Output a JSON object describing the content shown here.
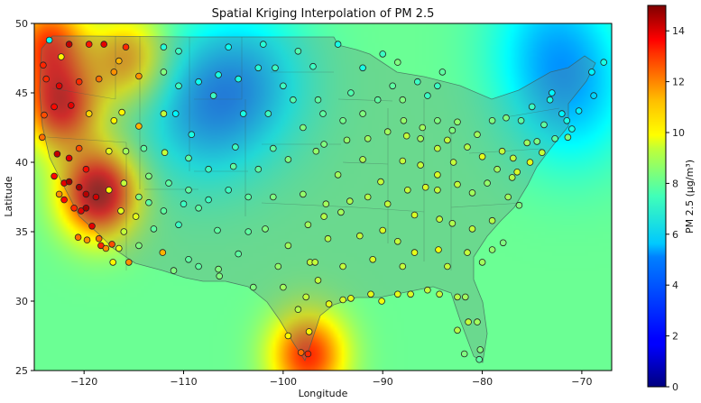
{
  "chart_data": {
    "type": "scatter",
    "title": "Spatial Kriging Interpolation of PM 2.5",
    "xlabel": "Longitude",
    "ylabel": "Latitude",
    "xlim": [
      -125,
      -67
    ],
    "ylim": [
      25,
      50
    ],
    "xticks": [
      -120,
      -110,
      -100,
      -90,
      -80,
      -70
    ],
    "xtick_labels": [
      "−120",
      "−110",
      "−100",
      "−90",
      "−80",
      "−70"
    ],
    "yticks": [
      25,
      30,
      35,
      40,
      45,
      50
    ],
    "ytick_labels": [
      "25",
      "30",
      "35",
      "40",
      "45",
      "50"
    ],
    "colorbar": {
      "label": "PM 2.5 (μg/m³)",
      "range": [
        0,
        15
      ],
      "ticks": [
        0,
        2,
        4,
        6,
        8,
        10,
        12,
        14
      ],
      "tick_labels": [
        "0",
        "2",
        "4",
        "6",
        "8",
        "10",
        "12",
        "14"
      ],
      "colormap": "jet"
    },
    "background_field": {
      "base_value": 7.2,
      "hotspots": [
        {
          "lon": -118.5,
          "lat": 37.8,
          "value": 14.5
        },
        {
          "lon": -122.3,
          "lat": 44.0,
          "value": 13.0
        },
        {
          "lon": -123.5,
          "lat": 48.6,
          "value": 12.0
        },
        {
          "lon": -115.6,
          "lat": 47.4,
          "value": 11.0
        },
        {
          "lon": -97.5,
          "lat": 26.1,
          "value": 12.5
        }
      ],
      "coldspots": [
        {
          "lon": -108.5,
          "lat": 43.5,
          "value": 5.0
        },
        {
          "lon": -103.5,
          "lat": 45.8,
          "value": 5.0
        },
        {
          "lon": -71.0,
          "lat": 44.5,
          "value": 5.2
        },
        {
          "lon": -73.0,
          "lat": 49.0,
          "value": 5.3
        }
      ]
    },
    "points": [
      [
        -124.1,
        47.0,
        12.6
      ],
      [
        -123.5,
        48.8,
        5.8
      ],
      [
        -122.3,
        47.6,
        9.5
      ],
      [
        -121.5,
        48.5,
        14.0
      ],
      [
        -119.5,
        48.5,
        12.8
      ],
      [
        -118.0,
        48.5,
        13.5
      ],
      [
        -115.8,
        48.3,
        12.5
      ],
      [
        -116.5,
        47.3,
        10.5
      ],
      [
        -112.0,
        48.3,
        6.2
      ],
      [
        -110.5,
        48.0,
        6.5
      ],
      [
        -105.5,
        48.3,
        5.8
      ],
      [
        -102.0,
        48.5,
        6.2
      ],
      [
        -98.5,
        48.0,
        6.8
      ],
      [
        -94.5,
        48.5,
        6.0
      ],
      [
        -90.0,
        47.8,
        6.5
      ],
      [
        -88.5,
        47.2,
        7.5
      ],
      [
        -84.0,
        46.5,
        7.0
      ],
      [
        -92.0,
        46.8,
        6.0
      ],
      [
        -123.8,
        46.0,
        12.5
      ],
      [
        -122.5,
        45.5,
        13.5
      ],
      [
        -120.5,
        45.8,
        12.5
      ],
      [
        -118.5,
        46.0,
        11.5
      ],
      [
        -117.0,
        46.5,
        11.0
      ],
      [
        -116.2,
        43.6,
        9.5
      ],
      [
        -114.5,
        46.2,
        11.0
      ],
      [
        -112.0,
        46.5,
        7.5
      ],
      [
        -110.5,
        45.5,
        6.5
      ],
      [
        -108.5,
        45.8,
        5.8
      ],
      [
        -106.5,
        46.3,
        6.0
      ],
      [
        -104.5,
        46.0,
        6.0
      ],
      [
        -100.8,
        46.8,
        6.5
      ],
      [
        -97.0,
        46.9,
        6.5
      ],
      [
        -96.5,
        44.5,
        7.0
      ],
      [
        -93.2,
        45.0,
        6.8
      ],
      [
        -90.5,
        44.5,
        7.0
      ],
      [
        -87.9,
        43.0,
        7.8
      ],
      [
        -85.5,
        44.8,
        6.5
      ],
      [
        -83.0,
        42.3,
        7.5
      ],
      [
        -124.0,
        43.4,
        12.0
      ],
      [
        -123.0,
        44.0,
        13.0
      ],
      [
        -121.3,
        44.1,
        13.5
      ],
      [
        -119.5,
        43.5,
        10.0
      ],
      [
        -117.0,
        43.0,
        9.5
      ],
      [
        -114.5,
        42.6,
        10.5
      ],
      [
        -112.0,
        43.5,
        8.5
      ],
      [
        -110.8,
        43.5,
        5.5
      ],
      [
        -109.2,
        42.0,
        6.0
      ],
      [
        -107.0,
        44.8,
        6.5
      ],
      [
        -104.8,
        41.1,
        6.5
      ],
      [
        -101.0,
        41.0,
        7.0
      ],
      [
        -98.0,
        42.5,
        7.5
      ],
      [
        -95.9,
        41.3,
        7.5
      ],
      [
        -93.6,
        41.6,
        7.8
      ],
      [
        -91.5,
        41.7,
        8.0
      ],
      [
        -89.5,
        42.2,
        8.0
      ],
      [
        -87.6,
        41.9,
        8.5
      ],
      [
        -86.2,
        41.7,
        8.0
      ],
      [
        -84.5,
        43.0,
        7.5
      ],
      [
        -82.5,
        42.9,
        7.8
      ],
      [
        -124.2,
        41.8,
        11.5
      ],
      [
        -122.7,
        40.6,
        14.0
      ],
      [
        -121.5,
        40.3,
        13.5
      ],
      [
        -120.5,
        41.0,
        12.0
      ],
      [
        -119.8,
        39.5,
        13.0
      ],
      [
        -117.5,
        40.8,
        9.0
      ],
      [
        -115.8,
        40.8,
        8.0
      ],
      [
        -114.0,
        41.0,
        7.0
      ],
      [
        -111.9,
        40.7,
        8.5
      ],
      [
        -109.5,
        40.3,
        7.0
      ],
      [
        -107.5,
        39.5,
        6.5
      ],
      [
        -105.0,
        39.7,
        7.0
      ],
      [
        -102.5,
        39.5,
        7.0
      ],
      [
        -99.5,
        40.2,
        7.5
      ],
      [
        -96.7,
        40.8,
        7.8
      ],
      [
        -94.5,
        39.1,
        8.0
      ],
      [
        -92.0,
        40.2,
        8.2
      ],
      [
        -90.2,
        38.6,
        8.5
      ],
      [
        -88.0,
        40.1,
        8.5
      ],
      [
        -86.2,
        39.8,
        8.5
      ],
      [
        -84.5,
        39.1,
        8.8
      ],
      [
        -82.9,
        40.0,
        8.5
      ],
      [
        -81.5,
        41.1,
        8.3
      ],
      [
        -80.0,
        40.4,
        9.0
      ],
      [
        -78.0,
        40.8,
        8.5
      ],
      [
        -76.5,
        39.3,
        8.8
      ],
      [
        -75.2,
        40.0,
        9.0
      ],
      [
        -74.0,
        40.7,
        8.5
      ],
      [
        -72.7,
        41.7,
        7.0
      ],
      [
        -71.4,
        41.8,
        7.5
      ],
      [
        -71.0,
        42.4,
        6.0
      ],
      [
        -123.0,
        39.0,
        13.0
      ],
      [
        -122.0,
        38.5,
        13.5
      ],
      [
        -121.5,
        38.6,
        14.5
      ],
      [
        -120.5,
        38.2,
        14.5
      ],
      [
        -119.8,
        37.7,
        14.2
      ],
      [
        -118.8,
        37.5,
        13.8
      ],
      [
        -117.5,
        38.0,
        9.5
      ],
      [
        -116.0,
        38.5,
        8.5
      ],
      [
        -114.5,
        37.5,
        7.5
      ],
      [
        -113.5,
        37.1,
        7.0
      ],
      [
        -111.5,
        38.5,
        7.0
      ],
      [
        -109.5,
        38.0,
        7.0
      ],
      [
        -107.5,
        37.3,
        6.5
      ],
      [
        -105.5,
        38.0,
        6.5
      ],
      [
        -103.5,
        37.5,
        7.0
      ],
      [
        -101.0,
        37.5,
        7.5
      ],
      [
        -98.0,
        37.7,
        7.8
      ],
      [
        -95.7,
        37.0,
        8.0
      ],
      [
        -93.3,
        37.2,
        8.2
      ],
      [
        -91.5,
        37.5,
        8.3
      ],
      [
        -89.5,
        37.0,
        8.5
      ],
      [
        -87.5,
        38.0,
        8.5
      ],
      [
        -85.7,
        38.2,
        8.8
      ],
      [
        -84.5,
        38.0,
        8.5
      ],
      [
        -82.5,
        38.4,
        8.5
      ],
      [
        -81.0,
        37.8,
        8.0
      ],
      [
        -79.5,
        38.5,
        7.8
      ],
      [
        -77.4,
        37.5,
        8.0
      ],
      [
        -76.3,
        36.9,
        7.5
      ],
      [
        -122.5,
        37.7,
        11.0
      ],
      [
        -122.0,
        37.3,
        13.0
      ],
      [
        -121.0,
        36.7,
        12.5
      ],
      [
        -120.3,
        36.5,
        13.5
      ],
      [
        -119.8,
        36.7,
        14.5
      ],
      [
        -119.2,
        35.4,
        13.5
      ],
      [
        -118.5,
        34.5,
        11.5
      ],
      [
        -118.3,
        34.0,
        12.5
      ],
      [
        -117.8,
        33.8,
        11.0
      ],
      [
        -117.2,
        34.1,
        12.0
      ],
      [
        -116.5,
        33.8,
        9.0
      ],
      [
        -117.1,
        32.8,
        9.5
      ],
      [
        -115.5,
        32.8,
        11.0
      ],
      [
        -114.5,
        34.0,
        7.5
      ],
      [
        -112.1,
        33.5,
        10.5
      ],
      [
        -111.0,
        32.2,
        7.5
      ],
      [
        -109.5,
        33.0,
        7.0
      ],
      [
        -106.6,
        35.1,
        7.0
      ],
      [
        -106.5,
        32.3,
        7.5
      ],
      [
        -104.5,
        33.4,
        7.0
      ],
      [
        -101.8,
        35.2,
        7.5
      ],
      [
        -99.5,
        34.0,
        8.0
      ],
      [
        -97.5,
        35.5,
        8.0
      ],
      [
        -95.9,
        36.1,
        8.3
      ],
      [
        -94.2,
        36.4,
        8.0
      ],
      [
        -92.3,
        34.7,
        8.5
      ],
      [
        -90.0,
        35.1,
        8.8
      ],
      [
        -88.5,
        34.3,
        8.5
      ],
      [
        -86.8,
        36.2,
        8.8
      ],
      [
        -84.3,
        35.9,
        8.5
      ],
      [
        -83.0,
        35.6,
        8.2
      ],
      [
        -81.0,
        35.2,
        8.5
      ],
      [
        -79.0,
        35.8,
        8.3
      ],
      [
        -77.9,
        34.2,
        7.5
      ],
      [
        -120.6,
        34.6,
        11.5
      ],
      [
        -119.7,
        34.4,
        11.0
      ],
      [
        -116.3,
        36.5,
        9.0
      ],
      [
        -113.0,
        35.2,
        7.0
      ],
      [
        -110.5,
        35.5,
        6.5
      ],
      [
        -108.5,
        36.7,
        7.0
      ],
      [
        -103.5,
        35.0,
        7.0
      ],
      [
        -100.5,
        32.5,
        7.8
      ],
      [
        -97.3,
        32.8,
        8.5
      ],
      [
        -96.8,
        32.8,
        8.5
      ],
      [
        -95.5,
        34.5,
        8.3
      ],
      [
        -94.0,
        32.5,
        8.5
      ],
      [
        -91.0,
        33.0,
        8.8
      ],
      [
        -88.0,
        32.5,
        8.5
      ],
      [
        -86.8,
        33.5,
        9.0
      ],
      [
        -84.4,
        33.7,
        9.2
      ],
      [
        -83.5,
        32.5,
        8.5
      ],
      [
        -81.5,
        33.5,
        8.5
      ],
      [
        -80.0,
        32.8,
        8.0
      ],
      [
        -79.0,
        33.7,
        7.8
      ],
      [
        -106.4,
        31.8,
        7.5
      ],
      [
        -103.0,
        31.0,
        7.5
      ],
      [
        -100.0,
        31.0,
        8.0
      ],
      [
        -98.5,
        29.4,
        8.3
      ],
      [
        -97.7,
        30.3,
        8.5
      ],
      [
        -96.5,
        31.5,
        8.5
      ],
      [
        -95.4,
        29.8,
        9.0
      ],
      [
        -94.0,
        30.1,
        8.8
      ],
      [
        -93.2,
        30.2,
        9.0
      ],
      [
        -91.2,
        30.5,
        9.0
      ],
      [
        -90.1,
        30.0,
        9.2
      ],
      [
        -88.5,
        30.5,
        9.0
      ],
      [
        -87.2,
        30.5,
        8.8
      ],
      [
        -85.5,
        30.8,
        8.5
      ],
      [
        -84.3,
        30.5,
        8.5
      ],
      [
        -82.5,
        30.3,
        8.3
      ],
      [
        -81.7,
        30.3,
        8.0
      ],
      [
        -80.5,
        28.5,
        8.0
      ],
      [
        -81.4,
        28.5,
        8.5
      ],
      [
        -82.5,
        27.9,
        8.3
      ],
      [
        -80.2,
        26.5,
        7.5
      ],
      [
        -80.3,
        25.8,
        7.0
      ],
      [
        -81.8,
        26.2,
        7.5
      ],
      [
        -97.4,
        27.8,
        9.5
      ],
      [
        -97.5,
        26.2,
        12.5
      ],
      [
        -98.2,
        26.3,
        11.5
      ],
      [
        -99.5,
        27.5,
        9.5
      ],
      [
        -88.0,
        44.5,
        7.5
      ],
      [
        -86.0,
        42.5,
        8.0
      ],
      [
        -84.5,
        41.0,
        8.5
      ],
      [
        -83.5,
        41.6,
        8.5
      ],
      [
        -80.5,
        42.0,
        8.0
      ],
      [
        -79.0,
        43.0,
        7.5
      ],
      [
        -77.6,
        43.2,
        7.5
      ],
      [
        -76.1,
        43.0,
        7.0
      ],
      [
        -75.0,
        44.0,
        6.5
      ],
      [
        -73.8,
        42.7,
        7.0
      ],
      [
        -73.2,
        44.5,
        6.0
      ],
      [
        -72.0,
        43.5,
        5.5
      ],
      [
        -71.5,
        43.0,
        6.0
      ],
      [
        -70.3,
        43.7,
        5.5
      ],
      [
        -68.8,
        44.8,
        5.0
      ],
      [
        -69.0,
        46.5,
        5.5
      ],
      [
        -67.8,
        47.2,
        6.0
      ],
      [
        -73.0,
        45.0,
        5.5
      ],
      [
        -74.5,
        41.5,
        7.5
      ],
      [
        -75.5,
        41.4,
        8.0
      ],
      [
        -76.9,
        40.3,
        8.5
      ],
      [
        -77.0,
        38.9,
        8.3
      ],
      [
        -78.5,
        39.5,
        8.0
      ],
      [
        -110.0,
        37.0,
        6.5
      ],
      [
        -104.0,
        43.5,
        6.0
      ],
      [
        -101.5,
        43.5,
        6.5
      ],
      [
        -99.0,
        44.5,
        6.8
      ],
      [
        -96.0,
        43.5,
        7.0
      ],
      [
        -94.0,
        43.0,
        7.3
      ],
      [
        -92.0,
        43.5,
        7.5
      ],
      [
        -89.0,
        45.5,
        7.0
      ],
      [
        -86.5,
        45.8,
        6.5
      ],
      [
        -84.5,
        45.5,
        6.5
      ],
      [
        -102.5,
        46.8,
        6.2
      ],
      [
        -100.0,
        45.5,
        6.5
      ],
      [
        -113.5,
        39.0,
        7.5
      ],
      [
        -116.0,
        35.0,
        8.5
      ],
      [
        -114.8,
        36.1,
        9.0
      ],
      [
        -112.0,
        36.5,
        7.0
      ],
      [
        -108.5,
        32.5,
        7.0
      ]
    ]
  }
}
